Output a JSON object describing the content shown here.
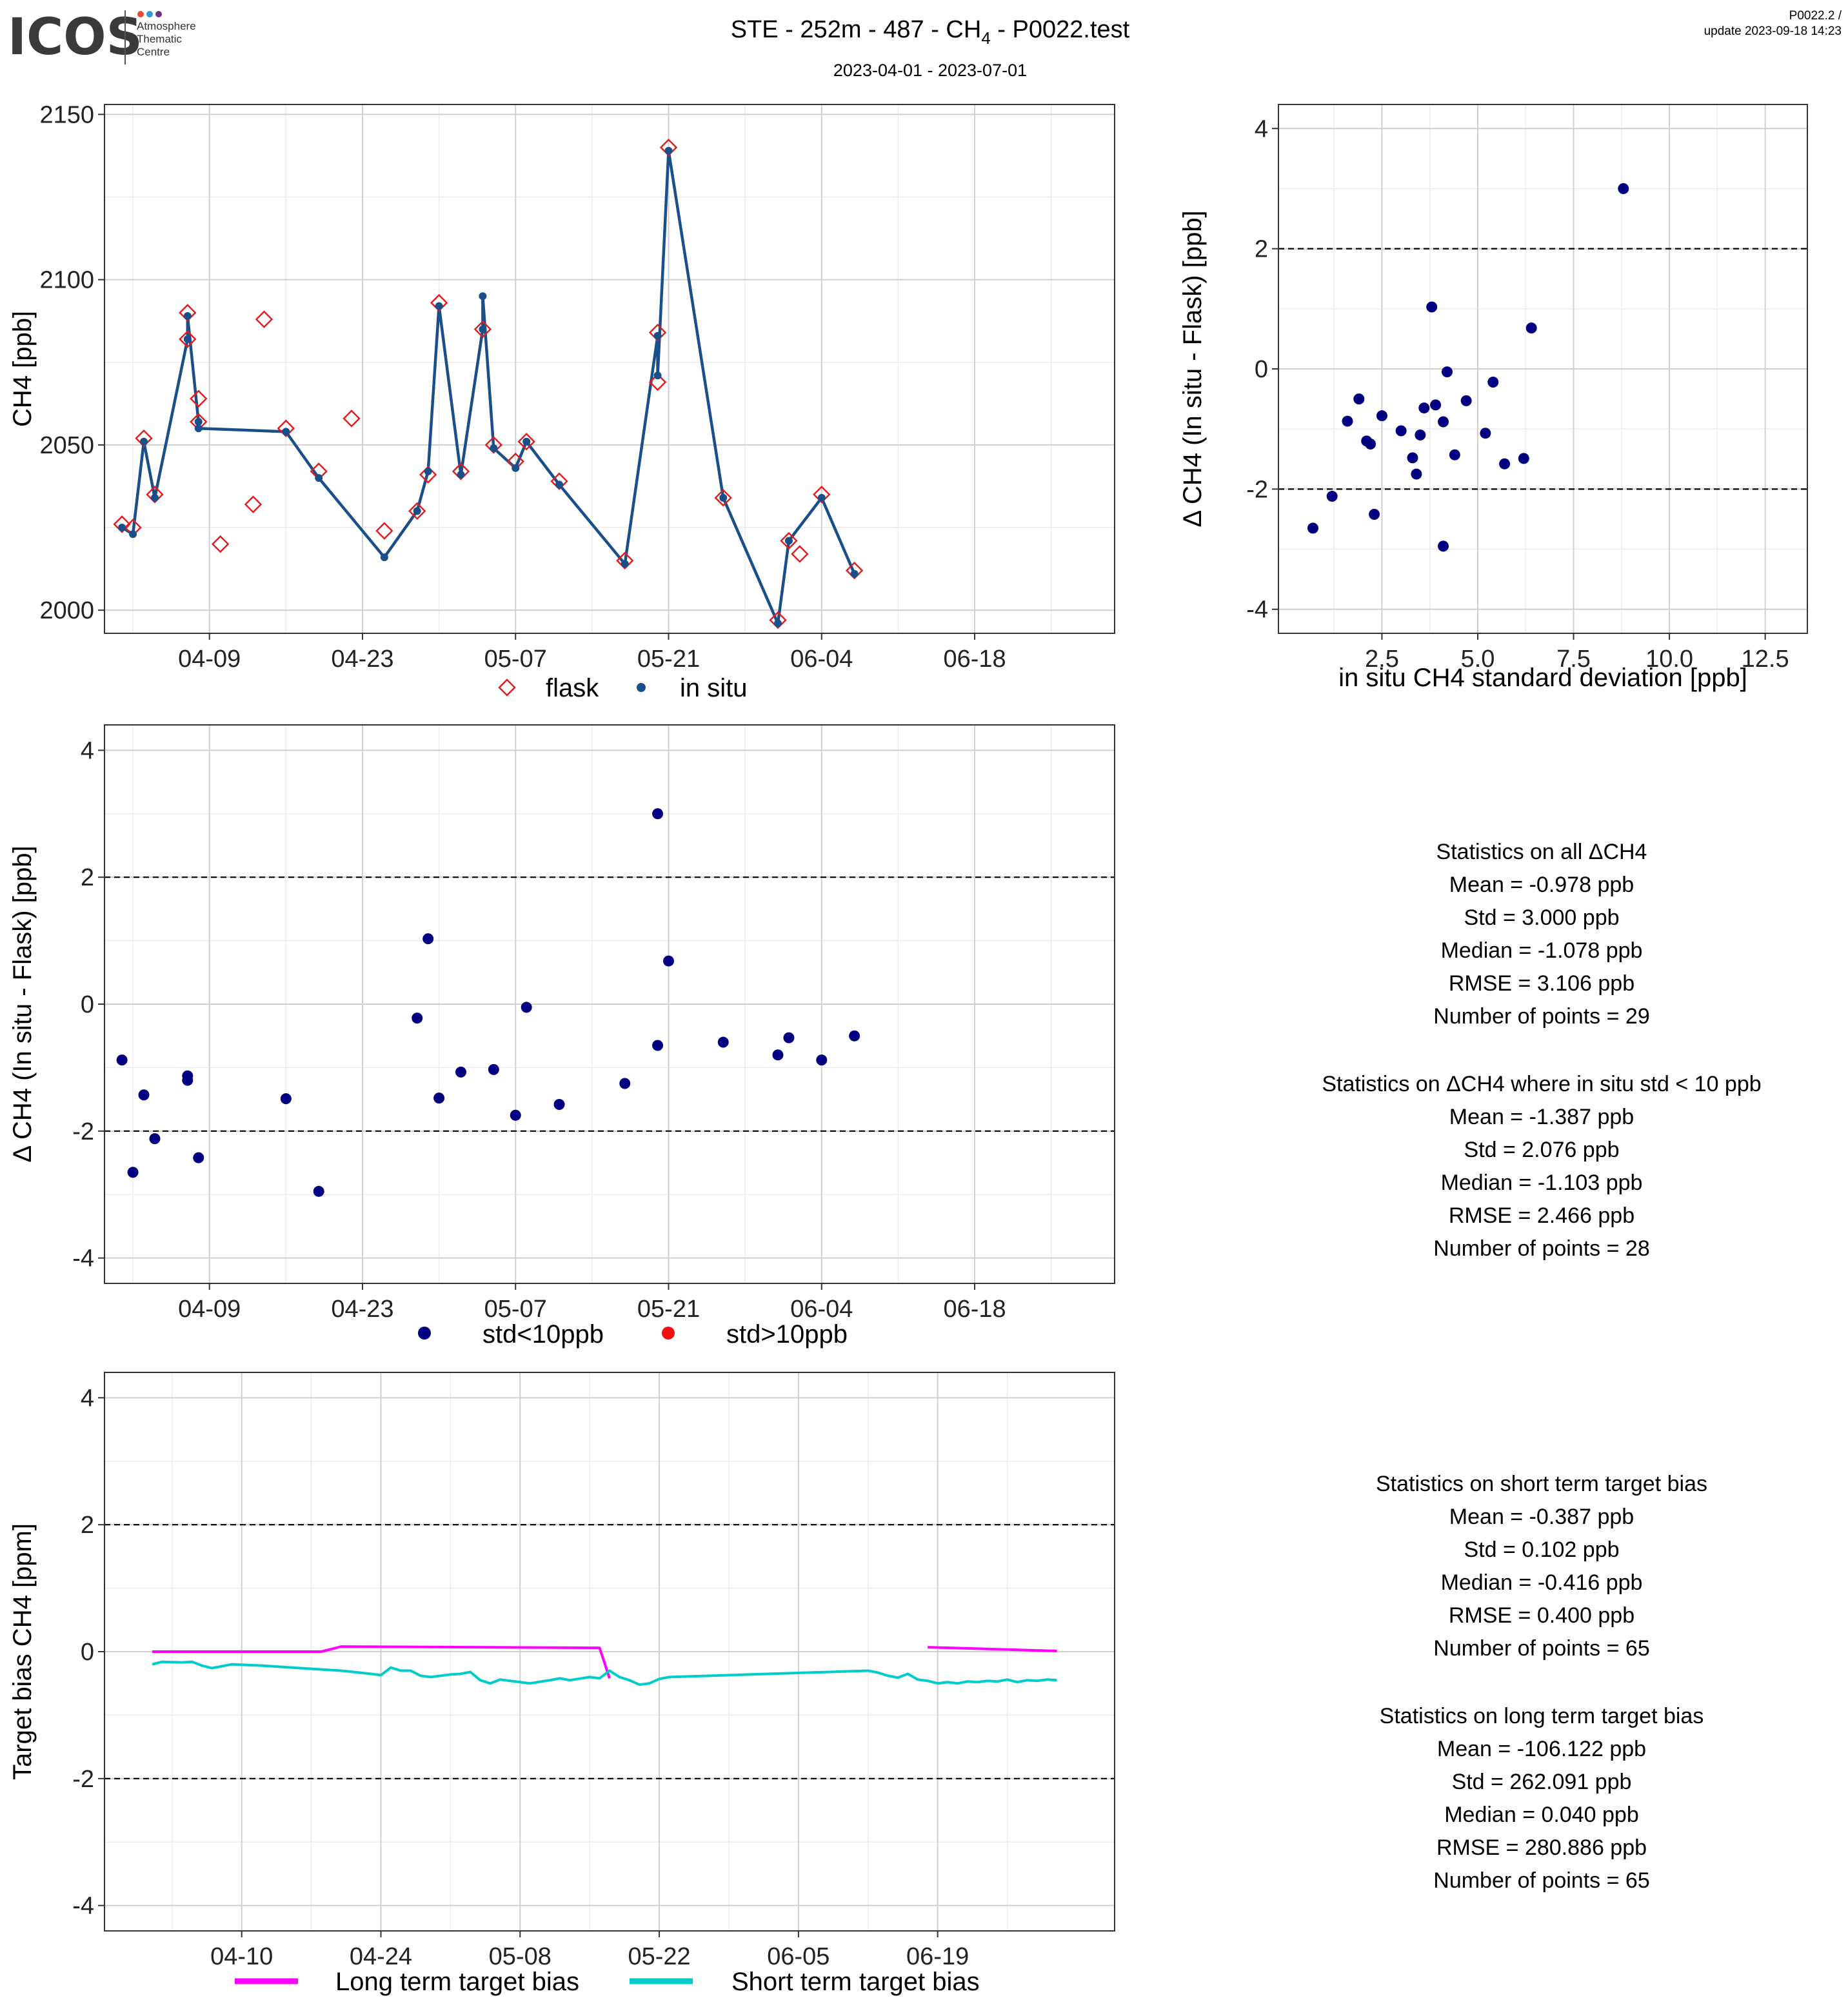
{
  "header": {
    "logo": "ICOS",
    "logo_subtitle": [
      "Atmosphere",
      "Thematic",
      "Centre"
    ],
    "title_prefix": "STE - 252m - 487 - CH",
    "title_subscript": "4",
    "title_suffix": " - P0022.test",
    "subtitle": "2023-04-01 - 2023-07-01",
    "version": "P0022.2 /",
    "update": "update  2023-09-18 14:23"
  },
  "colors": {
    "flask": "#e41a1c",
    "in_situ_line": "#1b4f8a",
    "in_situ_point": "#1b4f8a",
    "delta_point": "#000080",
    "std_gt_10": "#ee1111",
    "long_term": "#ff00ff",
    "short_term": "#00cccc"
  },
  "chart_data": [
    {
      "id": "timeseries",
      "type": "line",
      "ylabel": "CH4 [ppb]",
      "x_ticks": [
        "04-09",
        "04-23",
        "05-07",
        "05-21",
        "06-04",
        "06-18"
      ],
      "x_tick_days": [
        8,
        22,
        36,
        50,
        64,
        78
      ],
      "xlim_days": [
        -1.6,
        90.8
      ],
      "ylim": [
        1993,
        2153
      ],
      "y_ticks": [
        2000,
        2050,
        2100,
        2150
      ],
      "legend": [
        "flask",
        "in situ"
      ],
      "flask": [
        {
          "x": "2023-04-01",
          "y": 2026
        },
        {
          "x": "2023-04-02",
          "y": 2025
        },
        {
          "x": "2023-04-03",
          "y": 2052
        },
        {
          "x": "2023-04-04",
          "y": 2035
        },
        {
          "x": "2023-04-07",
          "y": 2090
        },
        {
          "x": "2023-04-07",
          "y": 2082
        },
        {
          "x": "2023-04-08",
          "y": 2064
        },
        {
          "x": "2023-04-08",
          "y": 2057
        },
        {
          "x": "2023-04-10",
          "y": 2020
        },
        {
          "x": "2023-04-13",
          "y": 2032
        },
        {
          "x": "2023-04-14",
          "y": 2088
        },
        {
          "x": "2023-04-16",
          "y": 2055
        },
        {
          "x": "2023-04-19",
          "y": 2042
        },
        {
          "x": "2023-04-22",
          "y": 2058
        },
        {
          "x": "2023-04-25",
          "y": 2024
        },
        {
          "x": "2023-04-28",
          "y": 2030
        },
        {
          "x": "2023-04-29",
          "y": 2041
        },
        {
          "x": "2023-04-30",
          "y": 2093
        },
        {
          "x": "2023-05-02",
          "y": 2042
        },
        {
          "x": "2023-05-04",
          "y": 2085
        },
        {
          "x": "2023-05-05",
          "y": 2050
        },
        {
          "x": "2023-05-07",
          "y": 2045
        },
        {
          "x": "2023-05-08",
          "y": 2051
        },
        {
          "x": "2023-05-11",
          "y": 2039
        },
        {
          "x": "2023-05-17",
          "y": 2015
        },
        {
          "x": "2023-05-20",
          "y": 2084
        },
        {
          "x": "2023-05-20",
          "y": 2069
        },
        {
          "x": "2023-05-21",
          "y": 2140
        },
        {
          "x": "2023-05-26",
          "y": 2034
        },
        {
          "x": "2023-05-31",
          "y": 1997
        },
        {
          "x": "2023-06-01",
          "y": 2021
        },
        {
          "x": "2023-06-02",
          "y": 2017
        },
        {
          "x": "2023-06-04",
          "y": 2035
        },
        {
          "x": "2023-06-07",
          "y": 2012
        }
      ],
      "in_situ": [
        {
          "x": "2023-04-01",
          "y": 2025
        },
        {
          "x": "2023-04-02",
          "y": 2023
        },
        {
          "x": "2023-04-03",
          "y": 2051
        },
        {
          "x": "2023-04-04",
          "y": 2034
        },
        {
          "x": "2023-04-07",
          "y": 2082
        },
        {
          "x": "2023-04-07",
          "y": 2089
        },
        {
          "x": "2023-04-08",
          "y": 2057
        },
        {
          "x": "2023-04-08",
          "y": 2055
        },
        {
          "x": "2023-04-16",
          "y": 2054
        },
        {
          "x": "2023-04-19",
          "y": 2040
        },
        {
          "x": "2023-04-25",
          "y": 2016
        },
        {
          "x": "2023-04-28",
          "y": 2030
        },
        {
          "x": "2023-04-29",
          "y": 2042
        },
        {
          "x": "2023-04-30",
          "y": 2092
        },
        {
          "x": "2023-05-02",
          "y": 2041
        },
        {
          "x": "2023-05-04",
          "y": 2085
        },
        {
          "x": "2023-05-04",
          "y": 2095
        },
        {
          "x": "2023-05-05",
          "y": 2049
        },
        {
          "x": "2023-05-07",
          "y": 2043
        },
        {
          "x": "2023-05-08",
          "y": 2051
        },
        {
          "x": "2023-05-11",
          "y": 2038
        },
        {
          "x": "2023-05-17",
          "y": 2014
        },
        {
          "x": "2023-05-20",
          "y": 2083
        },
        {
          "x": "2023-05-20",
          "y": 2071
        },
        {
          "x": "2023-05-21",
          "y": 2139
        },
        {
          "x": "2023-05-26",
          "y": 2034
        },
        {
          "x": "2023-05-31",
          "y": 1996
        },
        {
          "x": "2023-06-01",
          "y": 2021
        },
        {
          "x": "2023-06-04",
          "y": 2034
        },
        {
          "x": "2023-06-07",
          "y": 2011
        }
      ]
    },
    {
      "id": "scatter_std",
      "type": "scatter",
      "xlabel": "in situ CH4 standard deviation [ppb]",
      "ylabel": "Δ CH4 (In situ - Flask) [ppb]",
      "xlim": [
        -0.2,
        13.6
      ],
      "x_ticks": [
        2.5,
        5.0,
        7.5,
        10.0,
        12.5
      ],
      "x_tick_labels": [
        "2.5",
        "5.0",
        "7.5",
        "10.0",
        "12.5"
      ],
      "ylim": [
        -4.4,
        4.4
      ],
      "y_ticks": [
        -4,
        -2,
        0,
        2,
        4
      ],
      "hlines": [
        -2,
        2
      ],
      "points": [
        {
          "x": 0.7,
          "y": -2.65
        },
        {
          "x": 1.2,
          "y": -2.12
        },
        {
          "x": 1.6,
          "y": -0.87
        },
        {
          "x": 1.9,
          "y": -0.5
        },
        {
          "x": 2.1,
          "y": -1.2
        },
        {
          "x": 2.2,
          "y": -1.25
        },
        {
          "x": 2.3,
          "y": -2.42
        },
        {
          "x": 2.5,
          "y": -0.78
        },
        {
          "x": 3.0,
          "y": -1.03
        },
        {
          "x": 3.3,
          "y": -1.48
        },
        {
          "x": 3.4,
          "y": -1.75
        },
        {
          "x": 3.5,
          "y": -1.1
        },
        {
          "x": 3.6,
          "y": -0.65
        },
        {
          "x": 3.8,
          "y": 1.03
        },
        {
          "x": 3.9,
          "y": -0.6
        },
        {
          "x": 4.1,
          "y": -0.88
        },
        {
          "x": 4.1,
          "y": -2.95
        },
        {
          "x": 4.2,
          "y": -0.05
        },
        {
          "x": 4.4,
          "y": -1.43
        },
        {
          "x": 4.7,
          "y": -0.53
        },
        {
          "x": 5.2,
          "y": -1.07
        },
        {
          "x": 5.4,
          "y": -0.22
        },
        {
          "x": 5.7,
          "y": -1.58
        },
        {
          "x": 6.2,
          "y": -1.49
        },
        {
          "x": 6.4,
          "y": 0.68
        },
        {
          "x": 8.8,
          "y": 3.0
        }
      ]
    },
    {
      "id": "delta_timeseries",
      "type": "scatter",
      "ylabel": "Δ CH4 (In situ - Flask) [ppb]",
      "x_ticks": [
        "04-09",
        "04-23",
        "05-07",
        "05-21",
        "06-04",
        "06-18"
      ],
      "x_tick_days": [
        8,
        22,
        36,
        50,
        64,
        78
      ],
      "xlim_days": [
        -1.6,
        90.8
      ],
      "ylim": [
        -4.4,
        4.4
      ],
      "y_ticks": [
        -4,
        -2,
        0,
        2,
        4
      ],
      "hlines": [
        -2,
        2
      ],
      "legend": [
        "std<10ppb",
        "std>10ppb"
      ],
      "points": [
        {
          "x": "2023-04-01",
          "y": -0.88
        },
        {
          "x": "2023-04-02",
          "y": -2.65
        },
        {
          "x": "2023-04-03",
          "y": -1.43
        },
        {
          "x": "2023-04-04",
          "y": -2.12
        },
        {
          "x": "2023-04-07",
          "y": -1.13
        },
        {
          "x": "2023-04-07",
          "y": -1.2
        },
        {
          "x": "2023-04-08",
          "y": -2.42
        },
        {
          "x": "2023-04-16",
          "y": -1.49
        },
        {
          "x": "2023-04-19",
          "y": -2.95
        },
        {
          "x": "2023-04-28",
          "y": -0.22
        },
        {
          "x": "2023-04-29",
          "y": 1.03
        },
        {
          "x": "2023-04-30",
          "y": -1.48
        },
        {
          "x": "2023-05-02",
          "y": -1.07
        },
        {
          "x": "2023-05-05",
          "y": -1.03
        },
        {
          "x": "2023-05-07",
          "y": -1.75
        },
        {
          "x": "2023-05-08",
          "y": -0.05
        },
        {
          "x": "2023-05-11",
          "y": -1.58
        },
        {
          "x": "2023-05-17",
          "y": -1.25
        },
        {
          "x": "2023-05-20",
          "y": 3.0
        },
        {
          "x": "2023-05-20",
          "y": -0.65
        },
        {
          "x": "2023-05-21",
          "y": 0.68
        },
        {
          "x": "2023-05-26",
          "y": -0.6
        },
        {
          "x": "2023-05-31",
          "y": -0.8
        },
        {
          "x": "2023-06-01",
          "y": -0.53
        },
        {
          "x": "2023-06-04",
          "y": -0.88
        },
        {
          "x": "2023-06-07",
          "y": -0.5
        }
      ]
    },
    {
      "id": "target_bias",
      "type": "line",
      "ylabel": "Target bias CH4 [ppm]",
      "x_ticks": [
        "04-10",
        "04-24",
        "05-08",
        "05-22",
        "06-05",
        "06-19"
      ],
      "x_tick_days": [
        9,
        23,
        37,
        51,
        65,
        79
      ],
      "xlim_days": [
        -4.8,
        96.8
      ],
      "ylim": [
        -4.4,
        4.4
      ],
      "y_ticks": [
        -4,
        -2,
        0,
        2,
        4
      ],
      "hlines": [
        -2,
        2
      ],
      "legend": [
        "Long term target bias",
        "Short term target bias"
      ],
      "series": [
        {
          "name": "Long term target bias",
          "segments": [
            [
              {
                "x": "2023-04-01",
                "y": 0.0
              },
              {
                "x": "2023-04-05",
                "y": 0.0
              },
              {
                "x": "2023-04-18",
                "y": 0.0
              },
              {
                "x": "2023-04-20",
                "y": 0.08
              },
              {
                "x": "2023-05-16",
                "y": 0.06
              },
              {
                "x": "2023-05-17",
                "y": -0.42
              }
            ],
            [
              {
                "x": "2023-06-18",
                "y": 0.07
              },
              {
                "x": "2023-07-01",
                "y": 0.01
              }
            ]
          ]
        },
        {
          "name": "Short term target bias",
          "segments": [
            [
              {
                "x": "2023-04-01",
                "y": -0.2
              },
              {
                "x": "2023-04-02",
                "y": -0.16
              },
              {
                "x": "2023-04-04",
                "y": -0.17
              },
              {
                "x": "2023-04-05",
                "y": -0.16
              },
              {
                "x": "2023-04-06",
                "y": -0.22
              },
              {
                "x": "2023-04-07",
                "y": -0.26
              },
              {
                "x": "2023-04-08",
                "y": -0.23
              },
              {
                "x": "2023-04-09",
                "y": -0.2
              },
              {
                "x": "2023-04-12",
                "y": -0.22
              },
              {
                "x": "2023-04-16",
                "y": -0.26
              },
              {
                "x": "2023-04-20",
                "y": -0.3
              },
              {
                "x": "2023-04-23",
                "y": -0.35
              },
              {
                "x": "2023-04-24",
                "y": -0.37
              },
              {
                "x": "2023-04-25",
                "y": -0.25
              },
              {
                "x": "2023-04-26",
                "y": -0.3
              },
              {
                "x": "2023-04-27",
                "y": -0.3
              },
              {
                "x": "2023-04-28",
                "y": -0.38
              },
              {
                "x": "2023-04-29",
                "y": -0.4
              },
              {
                "x": "2023-05-01",
                "y": -0.36
              },
              {
                "x": "2023-05-02",
                "y": -0.35
              },
              {
                "x": "2023-05-03",
                "y": -0.32
              },
              {
                "x": "2023-05-04",
                "y": -0.45
              },
              {
                "x": "2023-05-05",
                "y": -0.5
              },
              {
                "x": "2023-05-06",
                "y": -0.44
              },
              {
                "x": "2023-05-08",
                "y": -0.48
              },
              {
                "x": "2023-05-09",
                "y": -0.5
              },
              {
                "x": "2023-05-11",
                "y": -0.45
              },
              {
                "x": "2023-05-12",
                "y": -0.42
              },
              {
                "x": "2023-05-13",
                "y": -0.45
              },
              {
                "x": "2023-05-15",
                "y": -0.4
              },
              {
                "x": "2023-05-16",
                "y": -0.42
              },
              {
                "x": "2023-05-17",
                "y": -0.3
              },
              {
                "x": "2023-05-18",
                "y": -0.4
              },
              {
                "x": "2023-05-19",
                "y": -0.45
              },
              {
                "x": "2023-05-20",
                "y": -0.52
              },
              {
                "x": "2023-05-21",
                "y": -0.5
              },
              {
                "x": "2023-05-22",
                "y": -0.43
              },
              {
                "x": "2023-05-23",
                "y": -0.4
              },
              {
                "x": "2023-06-12",
                "y": -0.3
              },
              {
                "x": "2023-06-13",
                "y": -0.33
              },
              {
                "x": "2023-06-14",
                "y": -0.38
              },
              {
                "x": "2023-06-15",
                "y": -0.41
              },
              {
                "x": "2023-06-16",
                "y": -0.35
              },
              {
                "x": "2023-06-17",
                "y": -0.44
              },
              {
                "x": "2023-06-18",
                "y": -0.46
              },
              {
                "x": "2023-06-19",
                "y": -0.5
              },
              {
                "x": "2023-06-20",
                "y": -0.48
              },
              {
                "x": "2023-06-21",
                "y": -0.5
              },
              {
                "x": "2023-06-22",
                "y": -0.47
              },
              {
                "x": "2023-06-23",
                "y": -0.48
              },
              {
                "x": "2023-06-24",
                "y": -0.46
              },
              {
                "x": "2023-06-25",
                "y": -0.47
              },
              {
                "x": "2023-06-26",
                "y": -0.44
              },
              {
                "x": "2023-06-27",
                "y": -0.48
              },
              {
                "x": "2023-06-28",
                "y": -0.45
              },
              {
                "x": "2023-06-29",
                "y": -0.46
              },
              {
                "x": "2023-06-30",
                "y": -0.44
              },
              {
                "x": "2023-07-01",
                "y": -0.45
              }
            ]
          ]
        }
      ]
    }
  ],
  "stats_delta": {
    "all_title": "Statistics on all ΔCH4",
    "all_lines": [
      "Mean =  -0.978 ppb",
      "Std =  3.000 ppb",
      "Median =  -1.078 ppb",
      "RMSE =  3.106 ppb",
      "Number of points =  29"
    ],
    "filtered_title": "Statistics on ΔCH4 where in situ std < 10 ppb",
    "filtered_lines": [
      "Mean =  -1.387 ppb",
      "Std =  2.076 ppb",
      "Median =  -1.103 ppb",
      "RMSE =  2.466 ppb",
      "Number of points =  28"
    ]
  },
  "stats_target": {
    "short_title": "Statistics on short term target bias",
    "short_lines": [
      "Mean =  -0.387 ppb",
      "Std =  0.102 ppb",
      "Median =  -0.416 ppb",
      "RMSE =  0.400 ppb",
      "Number of points =  65"
    ],
    "long_title": "Statistics on long term target bias",
    "long_lines": [
      "Mean =  -106.122 ppb",
      "Std =  262.091 ppb",
      "Median =  0.040 ppb",
      "RMSE =  280.886 ppb",
      "Number of points =  65"
    ]
  }
}
